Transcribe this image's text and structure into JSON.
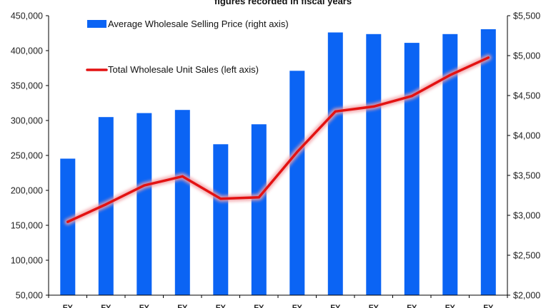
{
  "chart_data": {
    "type": "bar",
    "title": "figures recorded in fiscal years",
    "categories": [
      "FY",
      "FY",
      "FY",
      "FY",
      "FY",
      "FY",
      "FY",
      "FY",
      "FY",
      "FY",
      "FY",
      "FY"
    ],
    "series": [
      {
        "name": "Average Wholesale Selling Price (right axis)",
        "type": "bar",
        "axis": "right",
        "values": [
          3710,
          4230,
          4280,
          4320,
          3890,
          4140,
          4810,
          5290,
          5270,
          5160,
          5270,
          5330
        ]
      },
      {
        "name": "Total Wholesale Unit Sales (left axis)",
        "type": "line",
        "axis": "left",
        "values": [
          155000,
          180000,
          207000,
          220000,
          188000,
          190000,
          255000,
          313000,
          320000,
          335000,
          365000,
          390000
        ]
      }
    ],
    "y_left": {
      "ylim": [
        50000,
        450000
      ],
      "ticks": [
        "50,000",
        "100,000",
        "150,000",
        "200,000",
        "250,000",
        "300,000",
        "350,000",
        "400,000",
        "450,000"
      ]
    },
    "y_right": {
      "ylim": [
        2000,
        5500
      ],
      "ticks": [
        "$2,000",
        "$2,500",
        "$3,000",
        "$3,500",
        "$4,000",
        "$4,500",
        "$5,000",
        "$5,500"
      ]
    },
    "grid": false,
    "legend": "top-left",
    "colors": {
      "bar": "#0b64f4",
      "line": "#e31212",
      "line_glow": "#f2a0a6",
      "axis": "#000000"
    }
  }
}
